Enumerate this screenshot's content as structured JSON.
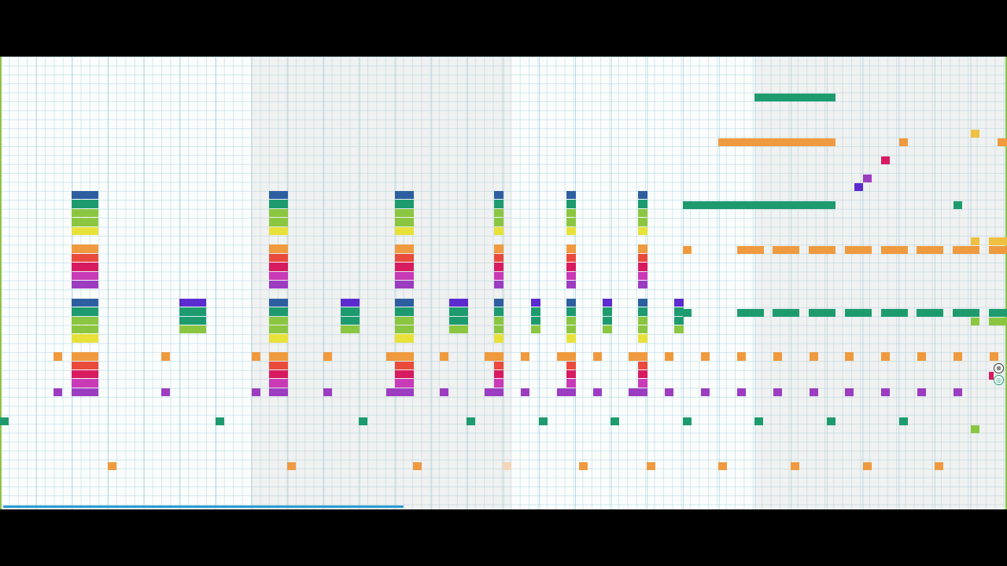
{
  "app": {
    "title": "",
    "progress_fraction": 0.4
  },
  "colors": {
    "background": "#000000",
    "grid_bg": "#fbfdfd",
    "progress": "#2b9bd3",
    "palette": [
      "#2d5fa0",
      "#1e9b6e",
      "#8bc640",
      "#e8e13a",
      "#ef9a3e",
      "#e94a3c",
      "#d81b60",
      "#c93ab6",
      "#9c3cc1",
      "#5c2bcf"
    ]
  },
  "icons": {
    "close": "close-icon",
    "loop": "loop-icon"
  },
  "side_controls": {
    "close_glyph": "⊗",
    "loop_glyph": "◎"
  }
}
